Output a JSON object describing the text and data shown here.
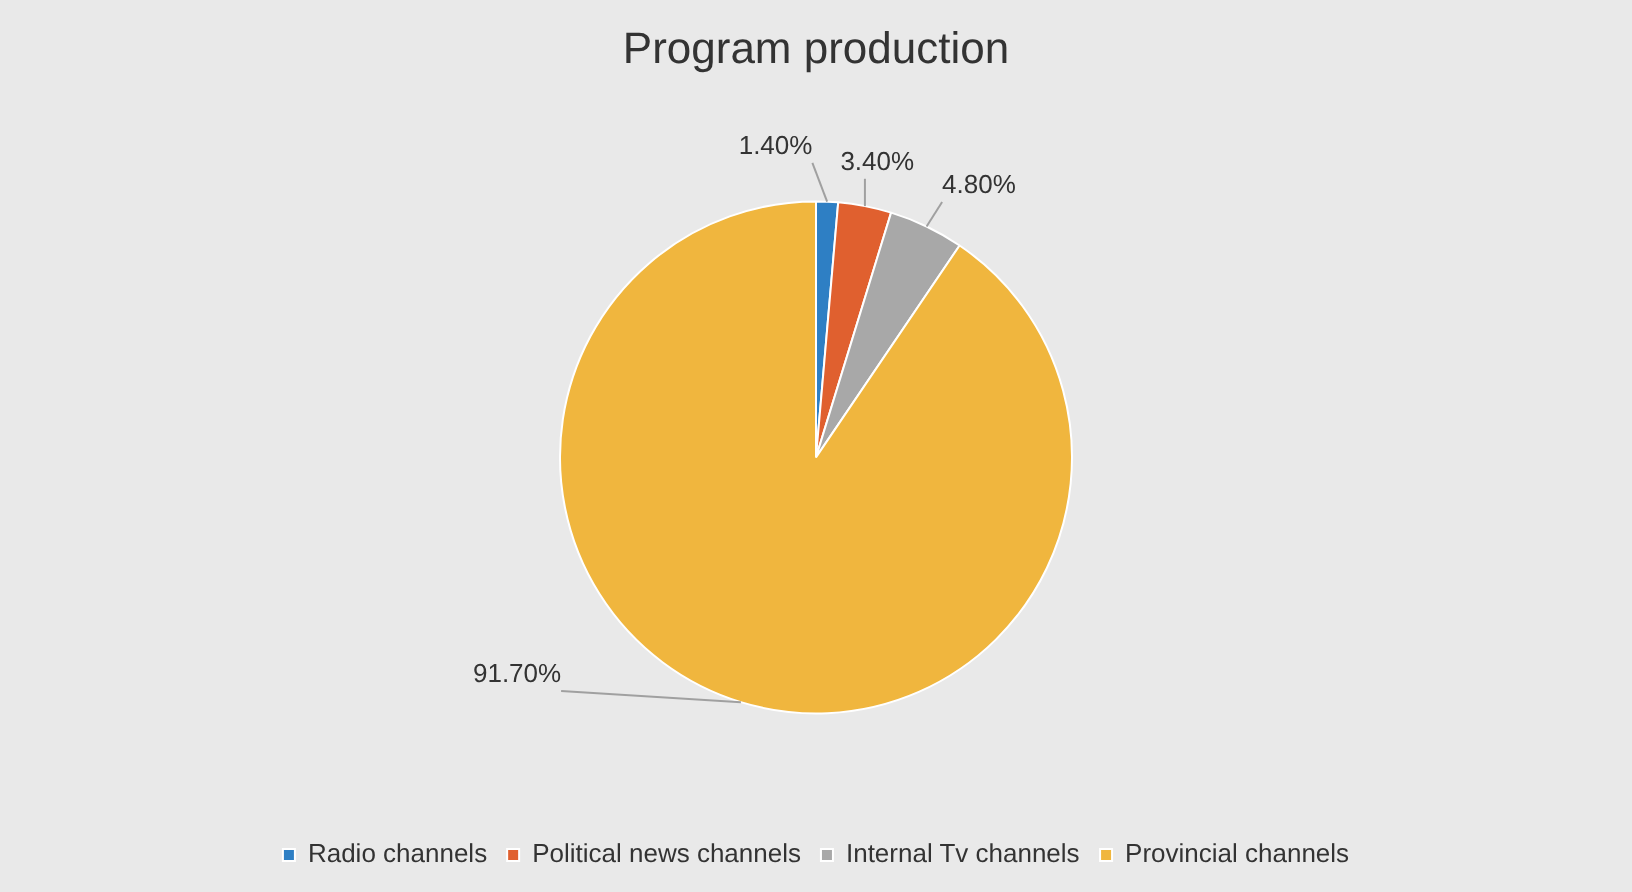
{
  "chart_data": {
    "type": "pie",
    "title": "Program production",
    "categories": [
      "Radio channels",
      "Political news channels",
      "Internal Tv channels",
      "Provincial channels"
    ],
    "values": [
      1.4,
      3.4,
      4.8,
      91.7
    ],
    "colors": [
      "#2e7fc4",
      "#e0602f",
      "#a8a8a8",
      "#f0b63e"
    ],
    "value_labels": [
      "1.40%",
      "3.40%",
      "4.80%",
      "91.70%"
    ],
    "legend": "bottom"
  }
}
